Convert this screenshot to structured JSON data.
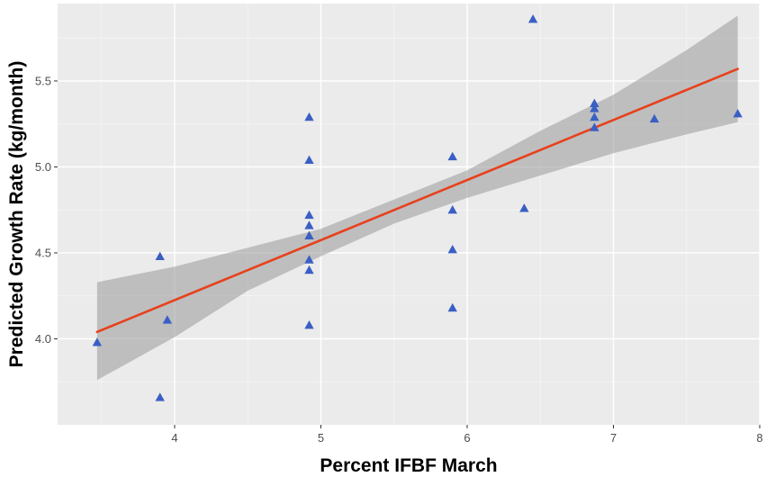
{
  "chart_data": {
    "type": "scatter",
    "xlabel": "Percent IFBF March",
    "ylabel": "Predicted Growth Rate (kg/month)",
    "xlim": [
      3.2,
      8.0
    ],
    "ylim": [
      3.5,
      5.95
    ],
    "x_ticks": [
      4,
      5,
      6,
      7,
      8
    ],
    "y_ticks": [
      4.0,
      4.5,
      5.0,
      5.5
    ],
    "x_tick_labels": [
      "4",
      "5",
      "6",
      "7",
      "8"
    ],
    "y_tick_labels": [
      "4.0",
      "4.5",
      "5.0",
      "5.5"
    ],
    "grid": true,
    "points": [
      {
        "x": 3.47,
        "y": 3.98
      },
      {
        "x": 3.9,
        "y": 4.48
      },
      {
        "x": 3.9,
        "y": 3.66
      },
      {
        "x": 3.95,
        "y": 4.11
      },
      {
        "x": 4.92,
        "y": 5.29
      },
      {
        "x": 4.92,
        "y": 5.04
      },
      {
        "x": 4.92,
        "y": 4.72
      },
      {
        "x": 4.92,
        "y": 4.66
      },
      {
        "x": 4.92,
        "y": 4.6
      },
      {
        "x": 4.92,
        "y": 4.46
      },
      {
        "x": 4.92,
        "y": 4.4
      },
      {
        "x": 4.92,
        "y": 4.08
      },
      {
        "x": 5.9,
        "y": 5.06
      },
      {
        "x": 5.9,
        "y": 4.75
      },
      {
        "x": 5.9,
        "y": 4.52
      },
      {
        "x": 5.9,
        "y": 4.18
      },
      {
        "x": 6.39,
        "y": 4.76
      },
      {
        "x": 6.45,
        "y": 5.86
      },
      {
        "x": 6.87,
        "y": 5.37
      },
      {
        "x": 6.87,
        "y": 5.34
      },
      {
        "x": 6.87,
        "y": 5.29
      },
      {
        "x": 6.87,
        "y": 5.23
      },
      {
        "x": 7.28,
        "y": 5.28
      },
      {
        "x": 7.85,
        "y": 5.31
      }
    ],
    "fit_line": {
      "x": [
        3.47,
        7.85
      ],
      "y": [
        4.04,
        5.57
      ]
    },
    "confidence_band": {
      "x": [
        3.47,
        4.0,
        4.5,
        5.0,
        5.5,
        6.0,
        6.5,
        7.0,
        7.5,
        7.85
      ],
      "lower": [
        3.76,
        4.01,
        4.28,
        4.48,
        4.67,
        4.82,
        4.95,
        5.08,
        5.19,
        5.26
      ],
      "upper": [
        4.33,
        4.42,
        4.53,
        4.64,
        4.81,
        4.98,
        5.21,
        5.42,
        5.68,
        5.88
      ]
    },
    "colors": {
      "panel": "#ebebeb",
      "grid_major": "#ffffff",
      "points": "#3a5fc4",
      "fit_line": "#e8401c",
      "band": "#999999"
    }
  }
}
